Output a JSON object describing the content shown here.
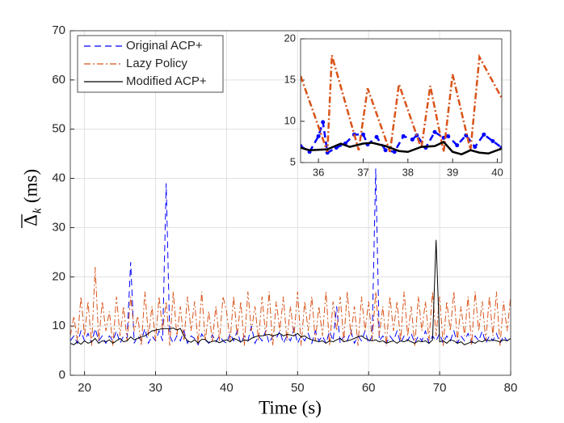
{
  "chart_data": [
    {
      "type": "line",
      "x_label": "Time (s)",
      "y_label": {
        "symbol": "Δ",
        "subscript": "k",
        "unit": "(ms)"
      },
      "xlim": [
        18,
        80
      ],
      "xticks": [
        20,
        30,
        40,
        50,
        60,
        70,
        80
      ],
      "ylim": [
        0,
        70
      ],
      "yticks": [
        0,
        10,
        20,
        30,
        40,
        50,
        60,
        70
      ],
      "grid": true,
      "legend": "upper left",
      "x": [
        18,
        18.5,
        19,
        19.5,
        20,
        20.5,
        21,
        21.5,
        22,
        22.5,
        23,
        23.5,
        24,
        24.5,
        25,
        25.5,
        26,
        26.5,
        27,
        27.5,
        28,
        28.5,
        29,
        29.5,
        30,
        30.5,
        31,
        31.5,
        32,
        32.5,
        33,
        33.5,
        34,
        34.5,
        35,
        35.5,
        36,
        36.5,
        37,
        37.5,
        38,
        38.5,
        39,
        39.5,
        40,
        40.5,
        41,
        41.5,
        42,
        42.5,
        43,
        43.5,
        44,
        44.5,
        45,
        45.5,
        46,
        46.5,
        47,
        47.5,
        48,
        48.5,
        49,
        49.5,
        50,
        50.5,
        51,
        51.5,
        52,
        52.5,
        53,
        53.5,
        54,
        54.5,
        55,
        55.5,
        56,
        56.5,
        57,
        57.5,
        58,
        58.5,
        59,
        59.5,
        60,
        60.5,
        61,
        61.5,
        62,
        62.5,
        63,
        63.5,
        64,
        64.5,
        65,
        65.5,
        66,
        66.5,
        67,
        67.5,
        68,
        68.5,
        69,
        69.5,
        70,
        70.5,
        71,
        71.5,
        72,
        72.5,
        73,
        73.5,
        74,
        74.5,
        75,
        75.5,
        76,
        76.5,
        77,
        77.5,
        78,
        78.5,
        79,
        79.5,
        80
      ],
      "series": [
        {
          "name": "Original ACP+",
          "color": "#0000ff",
          "style": "dashed",
          "values": [
            7,
            8,
            6.5,
            9,
            7,
            8.5,
            6.5,
            9.5,
            7,
            8,
            6.5,
            8,
            7,
            9,
            6.5,
            8,
            7.5,
            23,
            6.5,
            8,
            7,
            9.5,
            6.5,
            8,
            7,
            9,
            7,
            39,
            8,
            6.5,
            8,
            7,
            9,
            6.5,
            8,
            7.5,
            6.2,
            8.4,
            7.2,
            6.5,
            8.2,
            6.8,
            8,
            7,
            6.5,
            8.5,
            7,
            9,
            6.5,
            8,
            7,
            10,
            6.5,
            8,
            7,
            9,
            6.5,
            8,
            7.5,
            9,
            6.5,
            8,
            7,
            9.5,
            6.5,
            8,
            7,
            8.5,
            6.5,
            9,
            7,
            8,
            6.5,
            9,
            7,
            14,
            6.5,
            8,
            7,
            9,
            6.5,
            8,
            7,
            9,
            6.5,
            8,
            42,
            7,
            8,
            6.5,
            8,
            7,
            9,
            6.5,
            8,
            7,
            8.5,
            6.5,
            8,
            7,
            9,
            6.5,
            8,
            7,
            8.5,
            6.5,
            8,
            7,
            9,
            6.5,
            8,
            7,
            8.5,
            6.5,
            8,
            7,
            9,
            6.5,
            8,
            7,
            8.5,
            6.5,
            8,
            7,
            7.5
          ]
        },
        {
          "name": "Lazy Policy",
          "color": "#d95319",
          "style": "dashdot",
          "values": [
            8,
            12,
            7,
            16,
            8,
            15,
            6,
            22,
            7,
            15,
            9,
            13,
            6,
            16,
            8,
            14,
            7,
            16,
            9,
            12,
            6,
            17,
            8,
            14,
            7,
            16,
            9,
            15,
            6,
            17,
            8,
            14,
            7,
            16,
            9,
            15,
            6.3,
            17,
            7,
            13,
            7,
            14,
            7,
            16,
            13,
            7,
            16,
            8,
            15,
            6,
            17,
            9,
            14,
            7,
            16,
            8,
            17,
            6,
            15,
            9,
            16,
            7,
            14,
            8,
            17,
            6,
            15,
            9,
            16,
            7,
            14,
            8,
            17,
            6,
            15,
            9,
            16,
            7,
            17,
            8,
            14,
            6,
            16,
            9,
            15,
            7,
            17,
            8,
            14,
            6,
            16,
            9,
            15,
            7,
            17,
            8,
            14,
            6,
            16,
            9,
            15,
            7,
            17,
            8,
            16,
            6,
            15,
            9,
            17,
            7,
            14,
            8,
            16,
            6,
            17,
            9,
            15,
            7,
            16,
            8,
            17,
            6,
            15,
            9,
            16
          ]
        },
        {
          "name": "Modified ACP+",
          "color": "#000000",
          "style": "solid",
          "values": [
            6.5,
            6.2,
            6.8,
            6.3,
            7,
            6.5,
            6.8,
            7.5,
            6.5,
            7,
            6.8,
            7.2,
            6.5,
            7,
            7.5,
            6.8,
            7,
            7.8,
            7.2,
            7.5,
            7.8,
            8,
            8.5,
            9,
            9.2,
            9.3,
            9.5,
            9.5,
            9.4,
            9.6,
            9.2,
            9.5,
            8,
            7,
            6.7,
            7.2,
            6.6,
            7.3,
            7.3,
            6.6,
            6.9,
            7,
            6.6,
            7,
            7.2,
            6.8,
            7.5,
            7.2,
            6.8,
            7.2,
            7,
            7.5,
            7.8,
            8,
            8,
            8.2,
            8.3,
            8,
            8.2,
            8.5,
            8,
            8.3,
            8.2,
            8,
            8.5,
            7.8,
            8,
            7.5,
            7.2,
            7,
            6.8,
            7,
            6.5,
            7,
            6.8,
            7.2,
            7.5,
            6.8,
            7,
            7.2,
            7.5,
            7.8,
            8,
            7.5,
            7.2,
            7,
            7.2,
            6.8,
            7,
            6.5,
            6.8,
            7,
            6.5,
            7,
            6.8,
            7.2,
            6.8,
            6.5,
            7,
            6.8,
            7,
            6.5,
            7.2,
            27.5,
            6.8,
            7,
            6.5,
            7.2,
            7,
            6.5,
            6.8,
            6.2,
            6.5,
            6.8,
            6.5,
            7,
            6.8,
            7.2,
            7,
            7.2,
            7,
            6.8,
            7.2,
            7,
            7.5
          ]
        }
      ]
    },
    {
      "type": "line",
      "xlim": [
        35.6,
        40.1
      ],
      "xticks": [
        36,
        37,
        38,
        39,
        40
      ],
      "ylim": [
        5,
        20
      ],
      "yticks": [
        5,
        10,
        15,
        20
      ],
      "grid": false,
      "series": [
        {
          "name": "Original ACP+",
          "color": "#0000ff",
          "style": "dashed",
          "markers": true,
          "x": [
            35.6,
            35.8,
            36.0,
            36.1,
            36.2,
            36.4,
            36.6,
            36.8,
            37.0,
            37.1,
            37.3,
            37.5,
            37.7,
            37.9,
            38.1,
            38.2,
            38.4,
            38.6,
            38.8,
            38.9,
            39.1,
            39.3,
            39.5,
            39.7,
            39.9,
            40.1
          ],
          "values": [
            7,
            6.3,
            8.2,
            9.9,
            6.2,
            6.8,
            7.3,
            8.4,
            8.4,
            7.2,
            8.1,
            6.5,
            6.3,
            8.2,
            7.8,
            8.3,
            6.8,
            8.7,
            8.0,
            8.2,
            7.1,
            8.3,
            6.9,
            8.4,
            7.6,
            6.8
          ]
        },
        {
          "name": "Lazy Policy",
          "color": "#d95319",
          "style": "dashdot",
          "x": [
            35.6,
            36.2,
            36.3,
            36.9,
            37.1,
            37.6,
            37.8,
            38.3,
            38.5,
            38.8,
            39.0,
            39.4,
            39.6,
            40.1
          ],
          "values": [
            15.5,
            6.3,
            18,
            6.5,
            14,
            6.3,
            14.5,
            6.7,
            14.3,
            6.3,
            15.7,
            6.5,
            17.8,
            12.8
          ]
        },
        {
          "name": "Modified ACP+",
          "color": "#000000",
          "style": "solid",
          "x": [
            35.6,
            35.8,
            36.2,
            36.5,
            36.7,
            37.0,
            37.2,
            37.5,
            37.8,
            38.0,
            38.3,
            38.6,
            38.8,
            39.0,
            39.2,
            39.4,
            39.6,
            39.8,
            40.1
          ],
          "values": [
            6.8,
            6.5,
            6.6,
            7.3,
            6.9,
            7.3,
            7.4,
            7.0,
            6.4,
            6.3,
            6.9,
            7.0,
            7.5,
            6.3,
            6.0,
            6.5,
            6.2,
            6.1,
            6.7
          ]
        }
      ]
    }
  ]
}
